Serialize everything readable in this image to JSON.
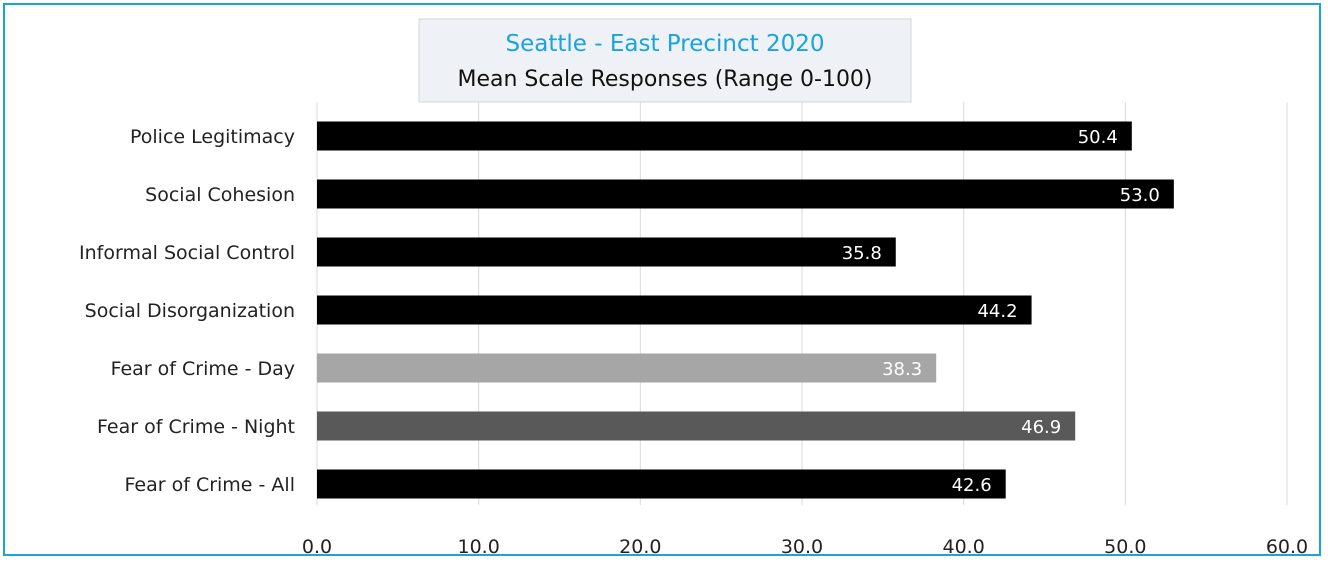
{
  "chart_data": {
    "type": "bar",
    "orientation": "horizontal",
    "title": "Seattle - East Precinct 2020",
    "subtitle": "Mean Scale Responses (Range 0-100)",
    "categories": [
      "Police Legitimacy",
      "Social Cohesion",
      "Informal Social Control",
      "Social Disorganization",
      "Fear of Crime - Day",
      "Fear of Crime - Night",
      "Fear of Crime - All"
    ],
    "values": [
      50.4,
      53.0,
      35.8,
      44.2,
      38.3,
      46.9,
      42.6
    ],
    "value_labels": [
      "50.4",
      "53.0",
      "35.8",
      "44.2",
      "38.3",
      "46.9",
      "42.6"
    ],
    "bar_colors": [
      "#000000",
      "#000000",
      "#000000",
      "#000000",
      "#a6a6a6",
      "#595959",
      "#000000"
    ],
    "xlim": [
      0,
      60
    ],
    "x_ticks": [
      0,
      10,
      20,
      30,
      40,
      50,
      60
    ],
    "x_tick_labels": [
      "0.0",
      "10.0",
      "20.0",
      "30.0",
      "40.0",
      "50.0",
      "60.0"
    ],
    "grid": true,
    "legend": "none",
    "colors": {
      "frame": "#1aa3dc",
      "title": "#1aa3dc",
      "grid": "#d9d9d9",
      "title_box": "#eef1f5"
    }
  }
}
